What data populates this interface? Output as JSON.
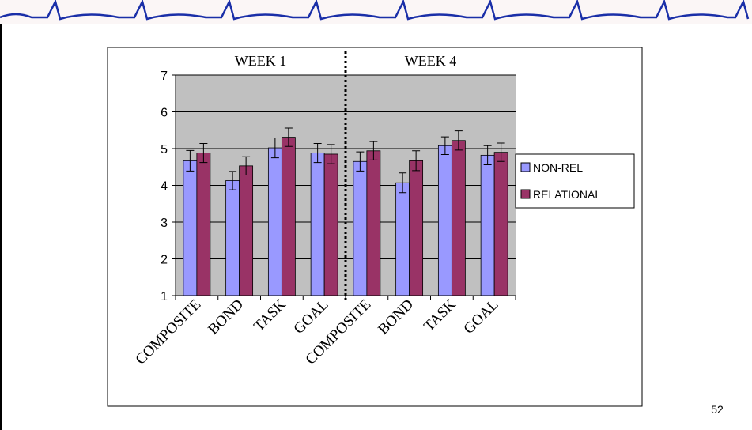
{
  "chart_data": {
    "type": "bar",
    "categories": [
      "COMPOSITE",
      "BOND",
      "TASK",
      "GOAL",
      "COMPOSITE",
      "BOND",
      "TASK",
      "GOAL"
    ],
    "group_labels": [
      "WEEK 1",
      "WEEK 4"
    ],
    "series": [
      {
        "name": "NON-REL",
        "color": "#9999ff",
        "values": [
          4.67,
          4.13,
          5.02,
          4.88,
          4.65,
          4.07,
          5.08,
          4.82
        ],
        "errors": [
          0.28,
          0.25,
          0.27,
          0.26,
          0.26,
          0.27,
          0.24,
          0.26
        ]
      },
      {
        "name": "RELATIONAL",
        "color": "#993366",
        "values": [
          4.88,
          4.53,
          5.31,
          4.85,
          4.94,
          4.67,
          5.22,
          4.9
        ],
        "errors": [
          0.26,
          0.25,
          0.25,
          0.26,
          0.25,
          0.27,
          0.26,
          0.25
        ]
      }
    ],
    "ylim": [
      1,
      7
    ],
    "yticks": [
      1,
      2,
      3,
      4,
      5,
      6,
      7
    ],
    "grid": true,
    "legend": "right"
  },
  "page_number": "52"
}
